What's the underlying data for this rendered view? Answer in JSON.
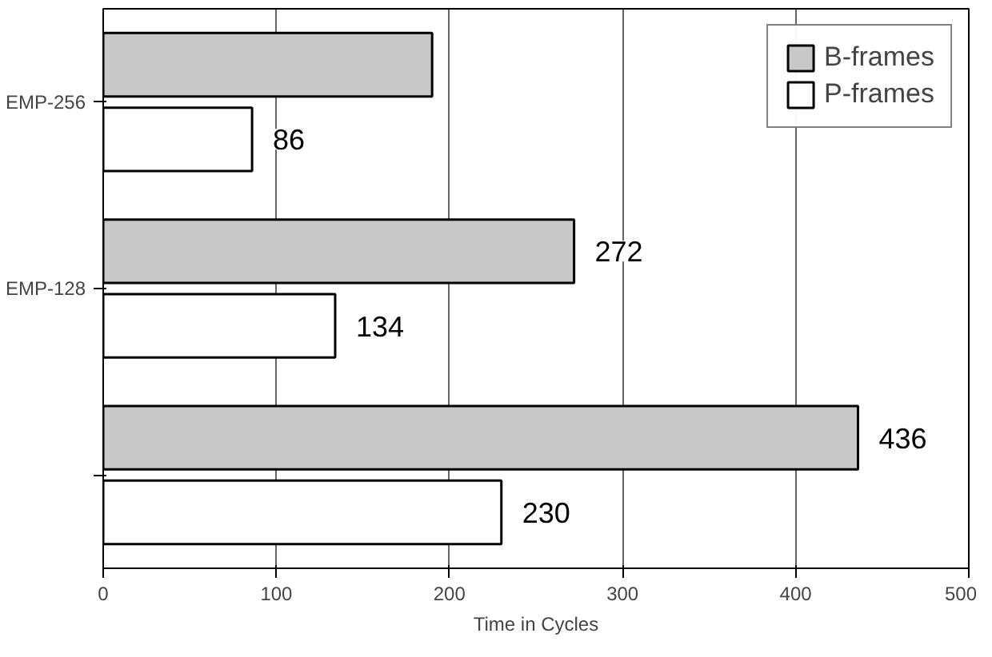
{
  "chart_data": {
    "type": "bar",
    "orientation": "horizontal",
    "xlabel": "Time in Cycles",
    "categories": [
      "EMP-256",
      "EMP-128",
      null
    ],
    "series": [
      {
        "name": "B-frames",
        "color": "#c8c8c8",
        "values": [
          190,
          272,
          436
        ],
        "value_labels": [
          null,
          "272",
          "436"
        ]
      },
      {
        "name": "P-frames",
        "color": "#ffffff",
        "values": [
          86,
          134,
          230
        ],
        "value_labels": [
          "86",
          "134",
          "230"
        ]
      }
    ],
    "xlim": [
      0,
      500
    ],
    "xticks": [
      0,
      100,
      200,
      300,
      400,
      500
    ],
    "grid": "x",
    "legend": "top right"
  }
}
